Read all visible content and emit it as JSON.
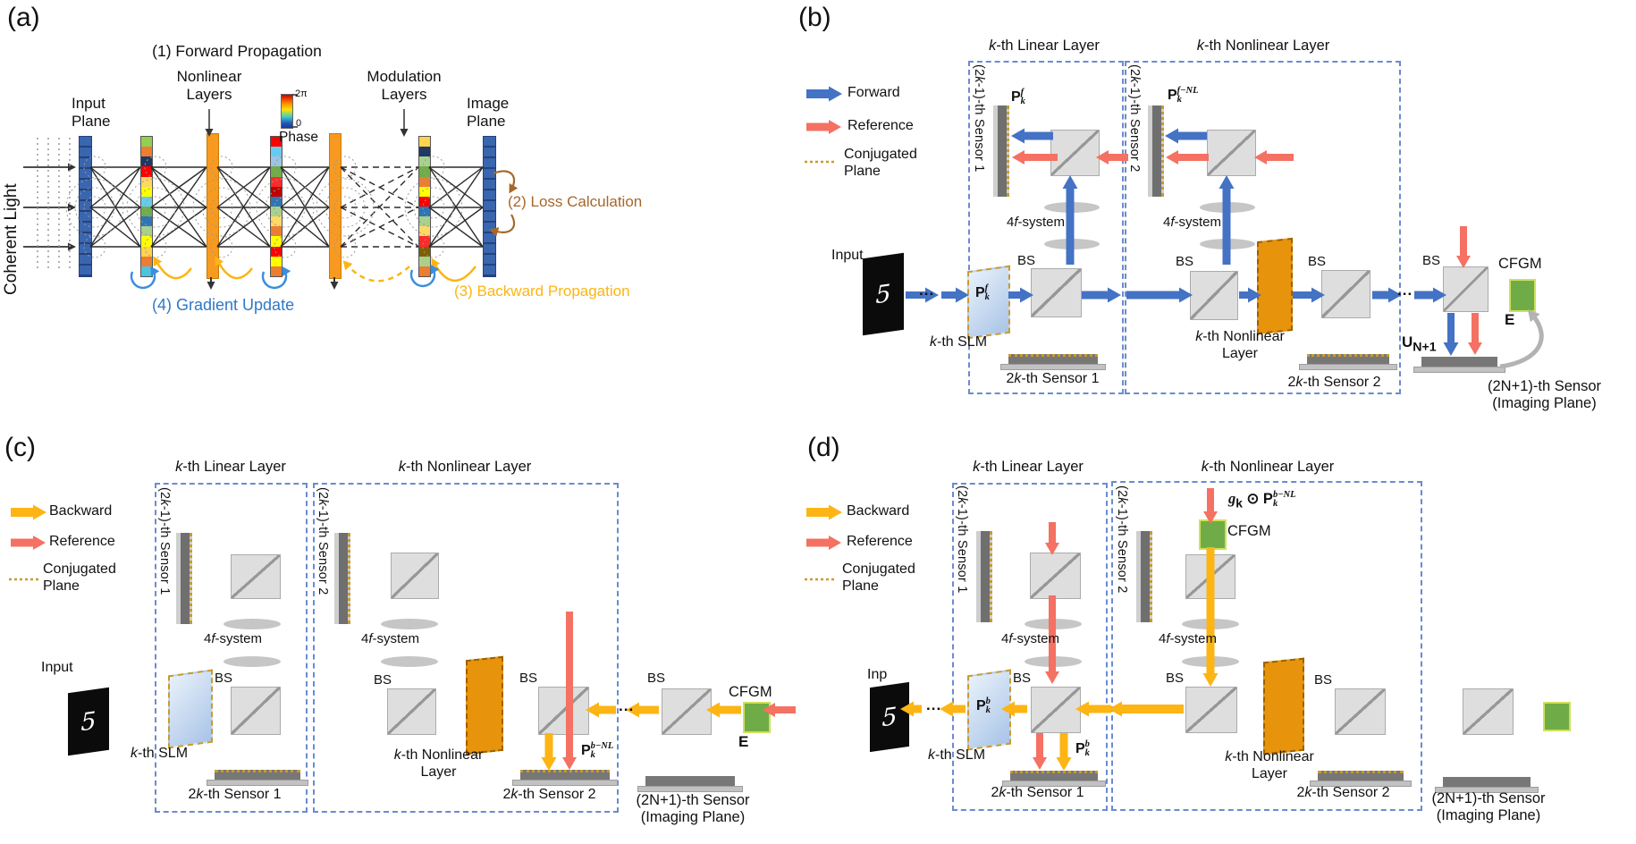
{
  "panel_a": {
    "tag": "(a)",
    "step1": "(1) Forward Propagation",
    "nonlinear_label": "Nonlinear\nLayers",
    "modulation_label": "Modulation\nLayers",
    "input_plane": "Input\nPlane",
    "image_plane": "Image\nPlane",
    "coherent": "Coherent Light",
    "phase": {
      "max": "2π",
      "min": "0",
      "label": "Phase"
    },
    "step2": "(2) Loss Calculation",
    "step3": "(3) Backward Propagation",
    "step4": "(4) Gradient Update",
    "palette_col1": [
      "#92d050",
      "#ed7d31",
      "#1f3864",
      "#ff0000",
      "#ffd966",
      "#ffff00",
      "#66ccee",
      "#70ad47",
      "#2e75b6",
      "#a9d18e",
      "#ffff00",
      "#ffd34d",
      "#ed7d31",
      "#4ec3e0"
    ],
    "palette_col2": [
      "#ff0000",
      "#66ccee",
      "#9dc3e6",
      "#70ad47",
      "#ff2a2a",
      "#c00000",
      "#2e75b6",
      "#a9d18e",
      "#ffd966",
      "#ed7d31",
      "#ffff00",
      "#ff0000",
      "#ffff00",
      "#ed7d31"
    ],
    "palette_col3": [
      "#ffd34d",
      "#1f3864",
      "#a9d18e",
      "#70ad47",
      "#ed7d31",
      "#ffff00",
      "#ff0000",
      "#2e75b6",
      "#a9d18e",
      "#ffd966",
      "#ff2a2a",
      "#7f6000",
      "#a9d18e",
      "#ed7d31"
    ],
    "colors": {
      "forward": "#4472c4",
      "reference": "#f47163",
      "backward": "#fcb514",
      "gradient_update": "#2e79c7",
      "loss": "#a5682a",
      "plane_blue": "#3a66b0",
      "nonlinear_bar": "#f79a1f"
    }
  },
  "panel_b": {
    "tag": "(b)",
    "legend": [
      {
        "label": "Forward"
      },
      {
        "label": "Reference"
      },
      {
        "label": "Conjugated\nPlane"
      }
    ],
    "header_linear": "k-th Linear Layer",
    "header_nonlinear": "k-th Nonlinear Layer",
    "sensor1_rot": "(2k-1)-th Sensor 1",
    "sensor2_rot": "(2k-1)-th Sensor 2",
    "p_f": {
      "base": "P",
      "sub": "k",
      "sup": "f"
    },
    "p_fnl": {
      "base": "P",
      "sub": "k",
      "sup": "f−NL"
    },
    "four_f": "4f-system",
    "bs": "BS",
    "input_label": "Input",
    "input_digit": "5",
    "slm_label": "k-th SLM",
    "nl_layer_label": "k-th Nonlinear\nLayer",
    "sensor1_label": "2k-th Sensor 1",
    "sensor2_label": "2k-th Sensor 2",
    "dots": "...",
    "u_n1": {
      "base": "U",
      "sub": "N+1"
    },
    "cfgm": "CFGM",
    "e": "E",
    "final_sensor": "(2N+1)-th Sensor\n(Imaging Plane)"
  },
  "panel_c": {
    "tag": "(c)",
    "legend": [
      {
        "label": "Backward"
      },
      {
        "label": "Reference"
      },
      {
        "label": "Conjugated\nPlane"
      }
    ],
    "header_linear": "k-th Linear Layer",
    "header_nonlinear": "k-th Nonlinear Layer",
    "sensor1_rot": "(2k-1)-th Sensor 1",
    "sensor2_rot": "(2k-1)-th Sensor 2",
    "four_f": "4f-system",
    "bs": "BS",
    "input_label": "Input",
    "input_digit": "5",
    "slm_label": "k-th SLM",
    "nl_layer_label": "k-th Nonlinear\nLayer",
    "sensor1_label": "2k-th Sensor 1",
    "sensor2_label": "2k-th Sensor 2",
    "p_bnl": {
      "base": "P",
      "sub": "k",
      "sup": "b−NL"
    },
    "dots": "...",
    "cfgm": "CFGM",
    "e": "E",
    "final_sensor": "(2N+1)-th Sensor\n(Imaging Plane)"
  },
  "panel_d": {
    "tag": "(d)",
    "legend": [
      {
        "label": "Backward"
      },
      {
        "label": "Reference"
      },
      {
        "label": "Conjugated\nPlane"
      }
    ],
    "header_linear": "k-th Linear Layer",
    "header_nonlinear": "k-th Nonlinear Layer",
    "sensor1_rot": "(2k-1)-th Sensor 1",
    "sensor2_rot": "(2k-1)-th Sensor 2",
    "four_f": "4f-system",
    "bs": "BS",
    "input_label": "Inp",
    "input_digit": "5",
    "slm_label": "k-th SLM",
    "nl_layer_label": "k-th Nonlinear\nLayer",
    "sensor1_label": "2k-th Sensor 1",
    "sensor2_label": "2k-th Sensor 2",
    "p_b": {
      "base": "P",
      "sub": "k",
      "sup": "b"
    },
    "grad_formula": {
      "g": "g",
      "g_sub": "k",
      "op": "⊙",
      "base": "P",
      "sub": "k",
      "sup": "b−NL"
    },
    "dots": "...",
    "cfgm": "CFGM",
    "final_sensor": "(2N+1)-th Sensor\n(Imaging Plane)"
  }
}
